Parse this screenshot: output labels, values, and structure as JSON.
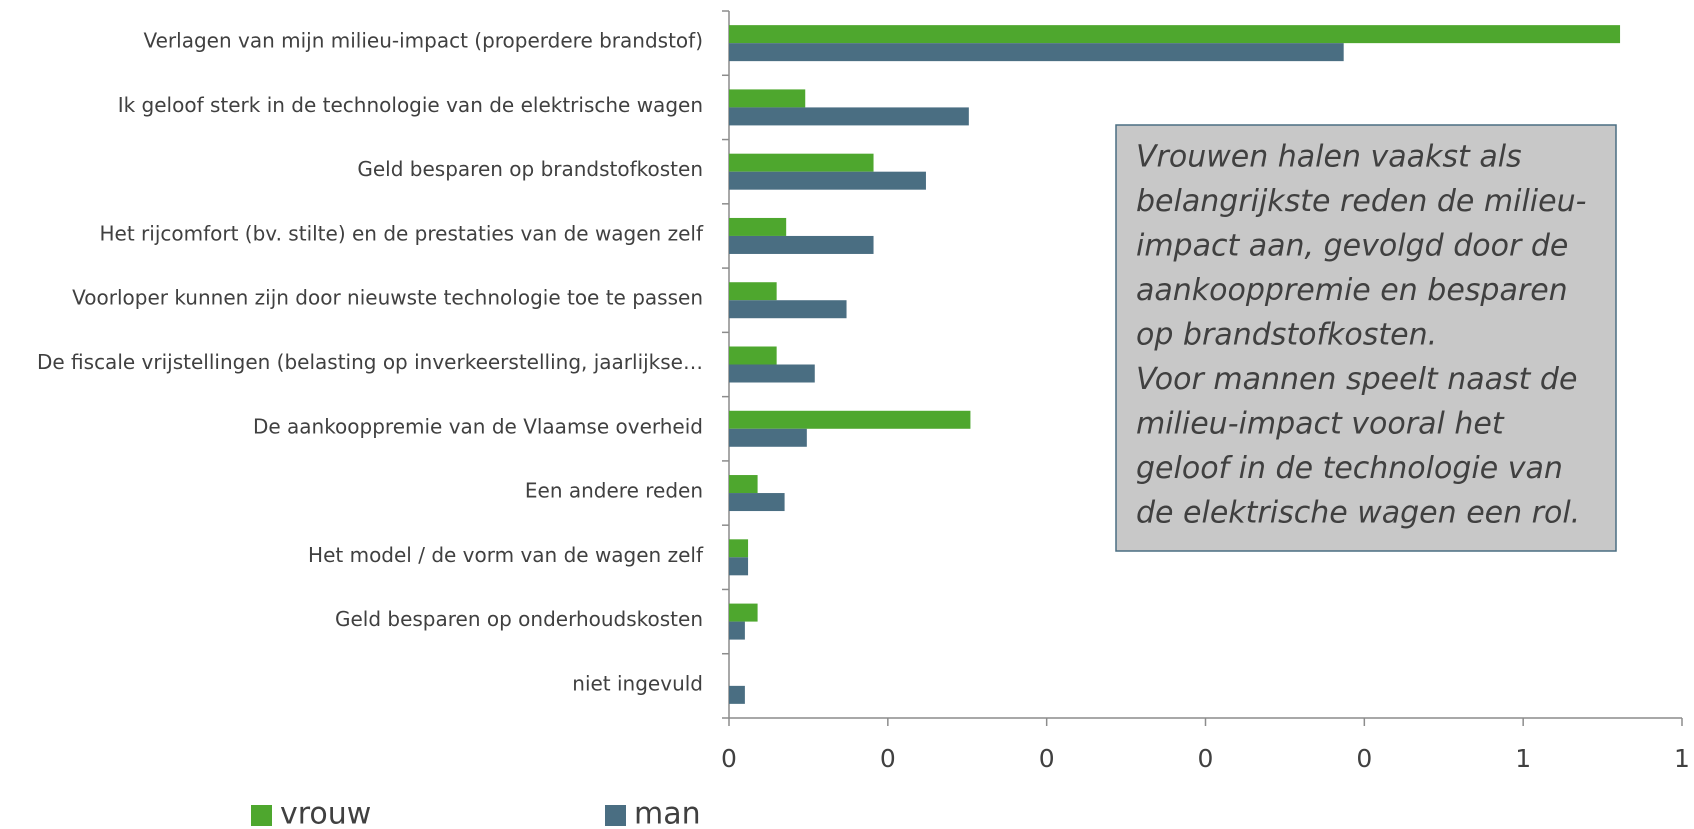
{
  "chart_data": {
    "type": "barh",
    "categories": [
      "Verlagen van mijn milieu-impact (properdere brandstof)",
      "Ik geloof sterk in de technologie van de elektrische wagen",
      "Geld besparen op brandstofkosten",
      "Het rijcomfort (bv. stilte) en de prestaties van de wagen zelf",
      "Voorloper kunnen zijn door nieuwste technologie toe te passen",
      "De fiscale vrijstellingen (belasting op inverkeerstelling, jaarlijkse…",
      "De aankooppremie van de Vlaamse overheid",
      "Een andere reden",
      "Het model / de vorm van de wagen zelf",
      "Geld besparen op onderhoudskosten",
      "niet ingevuld"
    ],
    "series": [
      {
        "name": "vrouw",
        "color": "#4ea72e",
        "values": [
          0.561,
          0.048,
          0.091,
          0.036,
          0.03,
          0.03,
          0.152,
          0.018,
          0.012,
          0.018,
          0
        ]
      },
      {
        "name": "man",
        "color": "#4a6e82",
        "values": [
          0.387,
          0.151,
          0.124,
          0.091,
          0.074,
          0.054,
          0.049,
          0.035,
          0.012,
          0.01,
          0.01
        ]
      }
    ],
    "xlim": [
      0,
      0.6
    ],
    "xticks": [
      0,
      {
        "value": 0.1,
        "label": "0"
      },
      {
        "value": 0.2,
        "label": "0"
      },
      {
        "value": 0.3,
        "label": "0"
      },
      {
        "value": 0.4,
        "label": "0"
      },
      {
        "value": 0.5,
        "label": "1"
      },
      {
        "value": 0.6,
        "label": "1"
      }
    ],
    "legend": "bottom-left",
    "annotation": [
      "Vrouwen halen vaakst als",
      "belangrijkste reden de milieu-",
      "impact aan, gevolgd door de",
      "aankooppremie en besparen",
      "op brandstofkosten.",
      "Voor mannen speelt naast de",
      "milieu-impact vooral het",
      "geloof in de technologie van",
      "de elektrische wagen een rol."
    ]
  }
}
